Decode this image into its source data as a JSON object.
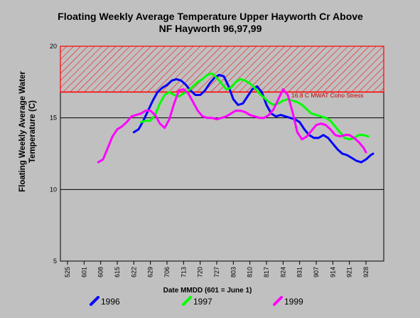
{
  "chart_data": {
    "type": "line",
    "title_lines": [
      "Floating Weekly Average Temperature Upper Hayworth Cr Above",
      "NF Hayworth 96,97,99"
    ],
    "ylabel_lines": [
      "Floating Weekly Average Water",
      "Temperature (C)"
    ],
    "xlabel": "Date MMDD (601 = June 1)",
    "ylim": [
      5,
      20
    ],
    "yticks": [
      5,
      10,
      15,
      20
    ],
    "x_day_range": [
      0,
      113
    ],
    "xticks": [
      {
        "label": "525",
        "day": 0
      },
      {
        "label": "601",
        "day": 7
      },
      {
        "label": "608",
        "day": 14
      },
      {
        "label": "615",
        "day": 21
      },
      {
        "label": "622",
        "day": 28
      },
      {
        "label": "629",
        "day": 35
      },
      {
        "label": "706",
        "day": 42
      },
      {
        "label": "713",
        "day": 49
      },
      {
        "label": "720",
        "day": 56
      },
      {
        "label": "727",
        "day": 63
      },
      {
        "label": "803",
        "day": 70
      },
      {
        "label": "810",
        "day": 77
      },
      {
        "label": "817",
        "day": 84
      },
      {
        "label": "824",
        "day": 91
      },
      {
        "label": "831",
        "day": 98
      },
      {
        "label": "907",
        "day": 105
      },
      {
        "label": "914",
        "day": 112
      },
      {
        "label": "921",
        "day": 119
      },
      {
        "label": "928",
        "day": 126
      }
    ],
    "threshold": {
      "value": 16.8,
      "upper": 20,
      "label": "16.8 C MWAT Coho Stress",
      "color": "#ff0000"
    },
    "grid": "horizontal",
    "legend_position": "bottom",
    "series": [
      {
        "name": "1996",
        "color": "#0000ff",
        "points": [
          [
            28,
            14.0
          ],
          [
            30,
            14.2
          ],
          [
            32,
            14.8
          ],
          [
            34,
            15.5
          ],
          [
            36,
            16.2
          ],
          [
            38,
            16.8
          ],
          [
            40,
            17.1
          ],
          [
            42,
            17.3
          ],
          [
            44,
            17.6
          ],
          [
            46,
            17.7
          ],
          [
            48,
            17.6
          ],
          [
            50,
            17.3
          ],
          [
            52,
            16.9
          ],
          [
            54,
            16.6
          ],
          [
            56,
            16.6
          ],
          [
            58,
            16.9
          ],
          [
            60,
            17.4
          ],
          [
            62,
            17.8
          ],
          [
            64,
            18.0
          ],
          [
            66,
            17.9
          ],
          [
            68,
            17.2
          ],
          [
            70,
            16.3
          ],
          [
            72,
            15.9
          ],
          [
            74,
            16.0
          ],
          [
            76,
            16.5
          ],
          [
            78,
            17.0
          ],
          [
            80,
            17.2
          ],
          [
            82,
            16.8
          ],
          [
            84,
            15.9
          ],
          [
            86,
            15.3
          ],
          [
            88,
            15.1
          ],
          [
            90,
            15.2
          ],
          [
            92,
            15.1
          ],
          [
            94,
            15.0
          ],
          [
            96,
            14.9
          ],
          [
            98,
            14.7
          ],
          [
            100,
            14.2
          ],
          [
            102,
            13.8
          ],
          [
            104,
            13.6
          ],
          [
            106,
            13.6
          ],
          [
            108,
            13.8
          ],
          [
            110,
            13.6
          ],
          [
            112,
            13.2
          ],
          [
            114,
            12.8
          ],
          [
            116,
            12.5
          ],
          [
            118,
            12.4
          ],
          [
            120,
            12.2
          ],
          [
            122,
            12.0
          ],
          [
            124,
            11.9
          ],
          [
            126,
            12.1
          ],
          [
            128,
            12.4
          ],
          [
            129,
            12.5
          ]
        ]
      },
      {
        "name": "1997",
        "color": "#00ff00",
        "points": [
          [
            31,
            14.7
          ],
          [
            33,
            14.8
          ],
          [
            35,
            14.8
          ],
          [
            37,
            15.2
          ],
          [
            39,
            16.0
          ],
          [
            41,
            16.6
          ],
          [
            43,
            16.8
          ],
          [
            45,
            16.6
          ],
          [
            47,
            16.5
          ],
          [
            49,
            16.7
          ],
          [
            51,
            16.9
          ],
          [
            53,
            17.2
          ],
          [
            55,
            17.5
          ],
          [
            57,
            17.7
          ],
          [
            59,
            18.0
          ],
          [
            61,
            18.1
          ],
          [
            63,
            17.8
          ],
          [
            65,
            17.4
          ],
          [
            67,
            17.0
          ],
          [
            69,
            17.1
          ],
          [
            71,
            17.5
          ],
          [
            73,
            17.7
          ],
          [
            75,
            17.6
          ],
          [
            77,
            17.4
          ],
          [
            79,
            17.1
          ],
          [
            81,
            16.7
          ],
          [
            83,
            16.4
          ],
          [
            85,
            16.1
          ],
          [
            87,
            15.9
          ],
          [
            89,
            16.0
          ],
          [
            91,
            16.2
          ],
          [
            93,
            16.3
          ],
          [
            95,
            16.2
          ],
          [
            97,
            16.1
          ],
          [
            99,
            15.9
          ],
          [
            101,
            15.6
          ],
          [
            103,
            15.3
          ],
          [
            105,
            15.2
          ],
          [
            107,
            15.1
          ],
          [
            109,
            15.0
          ],
          [
            111,
            14.8
          ],
          [
            113,
            14.4
          ],
          [
            115,
            14.0
          ],
          [
            117,
            13.6
          ],
          [
            119,
            13.5
          ],
          [
            121,
            13.6
          ],
          [
            123,
            13.8
          ],
          [
            125,
            13.8
          ],
          [
            127,
            13.7
          ]
        ]
      },
      {
        "name": "1999",
        "color": "#ff00ff",
        "points": [
          [
            13,
            11.9
          ],
          [
            15,
            12.1
          ],
          [
            17,
            12.9
          ],
          [
            19,
            13.7
          ],
          [
            21,
            14.2
          ],
          [
            23,
            14.4
          ],
          [
            25,
            14.7
          ],
          [
            27,
            15.1
          ],
          [
            29,
            15.2
          ],
          [
            31,
            15.3
          ],
          [
            33,
            15.5
          ],
          [
            35,
            15.5
          ],
          [
            37,
            15.2
          ],
          [
            39,
            14.6
          ],
          [
            41,
            14.3
          ],
          [
            43,
            14.9
          ],
          [
            45,
            16.0
          ],
          [
            47,
            16.9
          ],
          [
            49,
            17.0
          ],
          [
            51,
            16.7
          ],
          [
            53,
            16.1
          ],
          [
            55,
            15.5
          ],
          [
            57,
            15.1
          ],
          [
            59,
            15.0
          ],
          [
            61,
            15.0
          ],
          [
            63,
            14.9
          ],
          [
            65,
            15.0
          ],
          [
            67,
            15.1
          ],
          [
            69,
            15.3
          ],
          [
            71,
            15.5
          ],
          [
            73,
            15.5
          ],
          [
            75,
            15.4
          ],
          [
            77,
            15.2
          ],
          [
            79,
            15.1
          ],
          [
            81,
            15.0
          ],
          [
            83,
            15.0
          ],
          [
            85,
            15.2
          ],
          [
            87,
            15.6
          ],
          [
            89,
            16.3
          ],
          [
            91,
            17.0
          ],
          [
            93,
            16.6
          ],
          [
            95,
            15.4
          ],
          [
            97,
            14.0
          ],
          [
            99,
            13.5
          ],
          [
            101,
            13.7
          ],
          [
            103,
            14.1
          ],
          [
            105,
            14.5
          ],
          [
            107,
            14.6
          ],
          [
            109,
            14.5
          ],
          [
            111,
            14.2
          ],
          [
            113,
            13.8
          ],
          [
            115,
            13.7
          ],
          [
            117,
            13.8
          ],
          [
            119,
            13.8
          ],
          [
            121,
            13.6
          ],
          [
            123,
            13.3
          ],
          [
            125,
            12.9
          ],
          [
            126,
            12.6
          ]
        ]
      }
    ]
  }
}
